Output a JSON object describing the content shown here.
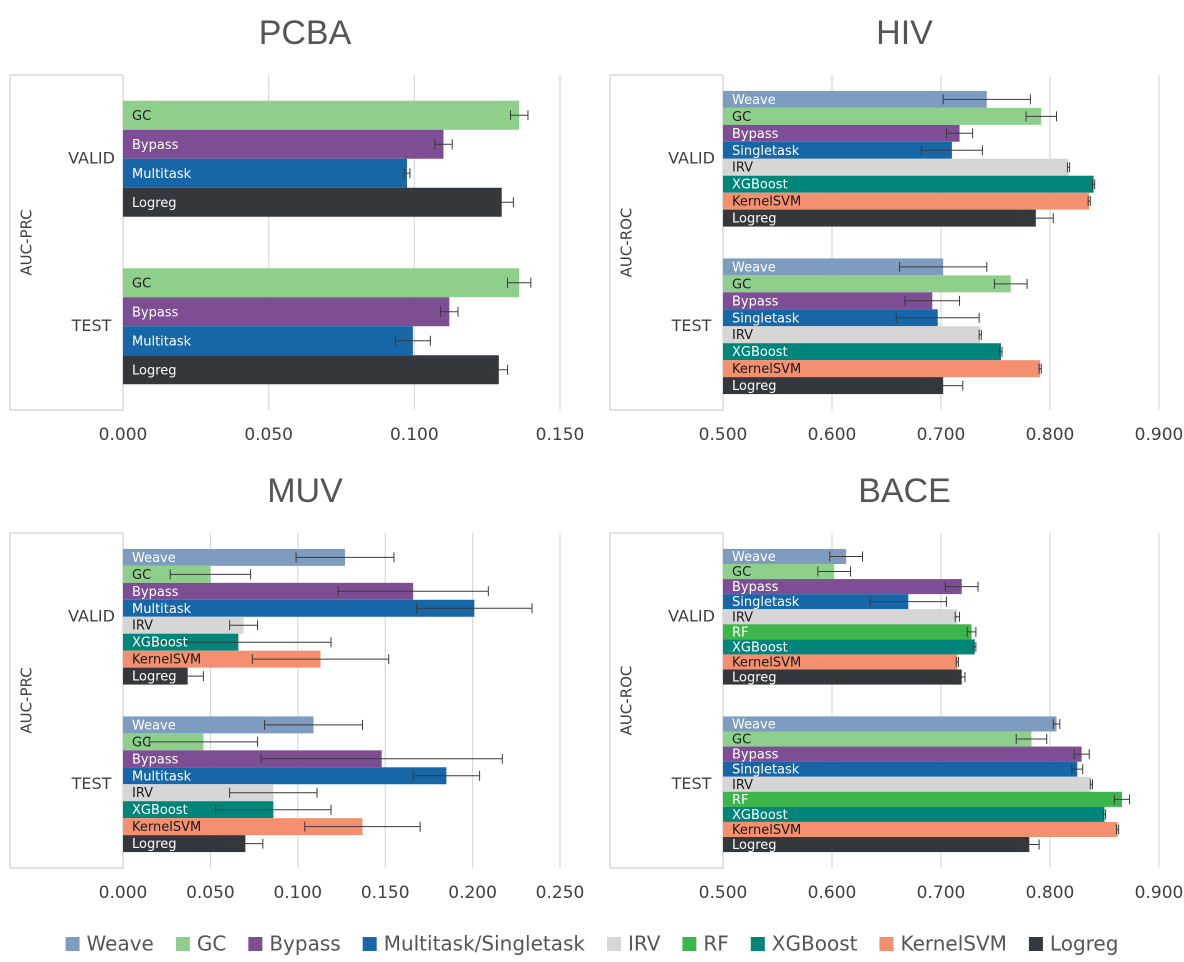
{
  "chart_data": [
    {
      "type": "bar",
      "title": "PCBA",
      "ylabel": "AUC-PRC",
      "categories": [
        "VALID",
        "TEST"
      ],
      "xlim": [
        0,
        0.15
      ],
      "xticks": [
        {
          "value": 0,
          "label": "0.000"
        },
        {
          "value": 0.05,
          "label": "0.050"
        },
        {
          "value": 0.1,
          "label": "0.100"
        },
        {
          "value": 0.15,
          "label": "0.150"
        }
      ],
      "grid": true,
      "series": [
        {
          "name": "GC",
          "color": "#8fcf8c",
          "values": [
            0.136,
            0.136
          ],
          "errors": [
            0.003,
            0.004
          ]
        },
        {
          "name": "Bypass",
          "color": "#7d4e93",
          "values": [
            0.11,
            0.112
          ],
          "errors": [
            0.003,
            0.003
          ]
        },
        {
          "name": "Multitask",
          "color": "#1666a8",
          "values": [
            0.0975,
            0.0995
          ],
          "errors": [
            0.001,
            0.006
          ]
        },
        {
          "name": "Logreg",
          "color": "#34383d",
          "values": [
            0.13,
            0.129
          ],
          "errors": [
            0.004,
            0.003
          ]
        }
      ]
    },
    {
      "type": "bar",
      "title": "HIV",
      "ylabel": "AUC-ROC",
      "categories": [
        "VALID",
        "TEST"
      ],
      "xlim": [
        0.5,
        0.9
      ],
      "xticks": [
        {
          "value": 0.5,
          "label": "0.500"
        },
        {
          "value": 0.6,
          "label": "0.600"
        },
        {
          "value": 0.7,
          "label": "0.700"
        },
        {
          "value": 0.8,
          "label": "0.800"
        },
        {
          "value": 0.9,
          "label": "0.900"
        }
      ],
      "grid": true,
      "series": [
        {
          "name": "Weave",
          "color": "#7d9cbf",
          "values": [
            0.742,
            0.702
          ],
          "errors": [
            0.04,
            0.04
          ]
        },
        {
          "name": "GC",
          "color": "#8fcf8c",
          "values": [
            0.792,
            0.764
          ],
          "errors": [
            0.014,
            0.015
          ]
        },
        {
          "name": "Bypass",
          "color": "#7d4e93",
          "values": [
            0.717,
            0.692
          ],
          "errors": [
            0.012,
            0.025
          ]
        },
        {
          "name": "Singletask",
          "color": "#1666a8",
          "values": [
            0.71,
            0.697
          ],
          "errors": [
            0.028,
            0.038
          ]
        },
        {
          "name": "IRV",
          "color": "#d6d6d6",
          "values": [
            0.817,
            0.736
          ],
          "errors": [
            0.001,
            0.001
          ]
        },
        {
          "name": "XGBoost",
          "color": "#00857a",
          "values": [
            0.84,
            0.755
          ],
          "errors": [
            0.001,
            0.001
          ]
        },
        {
          "name": "KernelSVM",
          "color": "#f48f6f",
          "values": [
            0.836,
            0.791
          ],
          "errors": [
            0.001,
            0.001
          ]
        },
        {
          "name": "Logreg",
          "color": "#34383d",
          "values": [
            0.787,
            0.702
          ],
          "errors": [
            0.016,
            0.018
          ]
        }
      ]
    },
    {
      "type": "bar",
      "title": "MUV",
      "ylabel": "AUC-PRC",
      "categories": [
        "VALID",
        "TEST"
      ],
      "xlim": [
        0,
        0.25
      ],
      "xticks": [
        {
          "value": 0,
          "label": "0.000"
        },
        {
          "value": 0.05,
          "label": "0.050"
        },
        {
          "value": 0.1,
          "label": "0.100"
        },
        {
          "value": 0.15,
          "label": "0.150"
        },
        {
          "value": 0.2,
          "label": "0.200"
        },
        {
          "value": 0.25,
          "label": "0.250"
        }
      ],
      "grid": true,
      "series": [
        {
          "name": "Weave",
          "color": "#7d9cbf",
          "values": [
            0.127,
            0.109
          ],
          "errors": [
            0.028,
            0.028
          ]
        },
        {
          "name": "GC",
          "color": "#8fcf8c",
          "values": [
            0.05,
            0.046
          ],
          "errors": [
            0.023,
            0.031
          ]
        },
        {
          "name": "Bypass",
          "color": "#7d4e93",
          "values": [
            0.166,
            0.148
          ],
          "errors": [
            0.043,
            0.069
          ]
        },
        {
          "name": "Multitask",
          "color": "#1666a8",
          "values": [
            0.201,
            0.185
          ],
          "errors": [
            0.033,
            0.019
          ]
        },
        {
          "name": "IRV",
          "color": "#d6d6d6",
          "values": [
            0.069,
            0.086
          ],
          "errors": [
            0.008,
            0.025
          ]
        },
        {
          "name": "XGBoost",
          "color": "#00857a",
          "values": [
            0.066,
            0.086
          ],
          "errors": [
            0.053,
            0.033
          ]
        },
        {
          "name": "KernelSVM",
          "color": "#f48f6f",
          "values": [
            0.113,
            0.137
          ],
          "errors": [
            0.039,
            0.033
          ]
        },
        {
          "name": "Logreg",
          "color": "#34383d",
          "values": [
            0.037,
            0.07
          ],
          "errors": [
            0.009,
            0.01
          ]
        }
      ]
    },
    {
      "type": "bar",
      "title": "BACE",
      "ylabel": "AUC-ROC",
      "categories": [
        "VALID",
        "TEST"
      ],
      "xlim": [
        0.5,
        0.9
      ],
      "xticks": [
        {
          "value": 0.5,
          "label": "0.500"
        },
        {
          "value": 0.6,
          "label": "0.600"
        },
        {
          "value": 0.7,
          "label": "0.700"
        },
        {
          "value": 0.8,
          "label": "0.800"
        },
        {
          "value": 0.9,
          "label": "0.900"
        }
      ],
      "grid": true,
      "series": [
        {
          "name": "Weave",
          "color": "#7d9cbf",
          "values": [
            0.613,
            0.806
          ],
          "errors": [
            0.015,
            0.003
          ]
        },
        {
          "name": "GC",
          "color": "#8fcf8c",
          "values": [
            0.602,
            0.783
          ],
          "errors": [
            0.015,
            0.014
          ]
        },
        {
          "name": "Bypass",
          "color": "#7d4e93",
          "values": [
            0.719,
            0.829
          ],
          "errors": [
            0.015,
            0.007
          ]
        },
        {
          "name": "Singletask",
          "color": "#1666a8",
          "values": [
            0.67,
            0.825
          ],
          "errors": [
            0.035,
            0.005
          ]
        },
        {
          "name": "IRV",
          "color": "#d6d6d6",
          "values": [
            0.715,
            0.838
          ],
          "errors": [
            0.002,
            0.001
          ]
        },
        {
          "name": "RF",
          "color": "#3cb54a",
          "values": [
            0.728,
            0.866
          ],
          "errors": [
            0.004,
            0.007
          ]
        },
        {
          "name": "XGBoost",
          "color": "#00857a",
          "values": [
            0.731,
            0.85
          ],
          "errors": [
            0.001,
            0.001
          ]
        },
        {
          "name": "KernelSVM",
          "color": "#f48f6f",
          "values": [
            0.715,
            0.862
          ],
          "errors": [
            0.001,
            0.001
          ]
        },
        {
          "name": "Logreg",
          "color": "#34383d",
          "values": [
            0.719,
            0.781
          ],
          "errors": [
            0.003,
            0.009
          ]
        }
      ]
    }
  ],
  "legend": [
    {
      "name": "Weave",
      "color": "#7d9cbf"
    },
    {
      "name": "GC",
      "color": "#8fcf8c"
    },
    {
      "name": "Bypass",
      "color": "#7d4e93"
    },
    {
      "name": "Multitask/Singletask",
      "color": "#1666a8"
    },
    {
      "name": "IRV",
      "color": "#d6d6d6"
    },
    {
      "name": "RF",
      "color": "#3cb54a"
    },
    {
      "name": "XGBoost",
      "color": "#00857a"
    },
    {
      "name": "KernelSVM",
      "color": "#f48f6f"
    },
    {
      "name": "Logreg",
      "color": "#34383d"
    }
  ]
}
